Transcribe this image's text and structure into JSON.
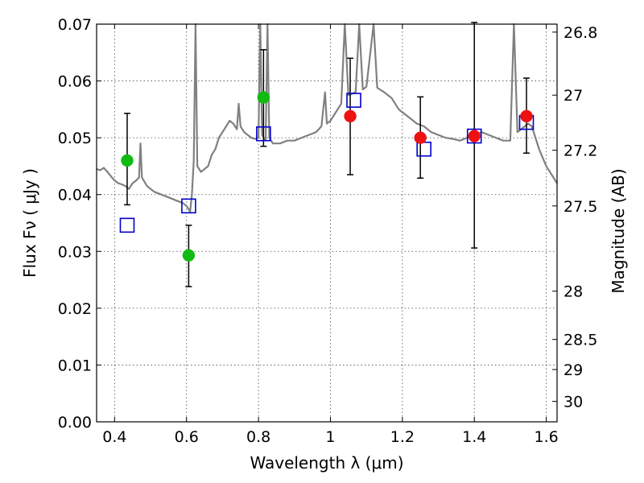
{
  "chart_data": {
    "type": "scatter",
    "title": "",
    "xlabel": "Wavelength  λ (μm)",
    "ylabel": "Flux  Fν  ( μJy )",
    "ylabel_right": "Magnitude (AB)",
    "xlim": [
      0.35,
      1.63
    ],
    "ylim": [
      0.0,
      0.07
    ],
    "grid": true,
    "x_ticks": [
      0.4,
      0.6,
      0.8,
      1.0,
      1.2,
      1.4,
      1.6
    ],
    "x_tick_labels": [
      "0.4",
      "0.6",
      "0.8",
      "1",
      "1.2",
      "1.4",
      "1.6"
    ],
    "y_ticks": [
      0.0,
      0.01,
      0.02,
      0.03,
      0.04,
      0.05,
      0.06,
      0.07
    ],
    "y_tick_labels": [
      "0.00",
      "0.01",
      "0.02",
      "0.03",
      "0.04",
      "0.05",
      "0.06",
      "0.07"
    ],
    "right_ticks": [
      {
        "flux": 0.0686,
        "label": "26.8"
      },
      {
        "flux": 0.0575,
        "label": "27"
      },
      {
        "flux": 0.0478,
        "label": "27.2"
      },
      {
        "flux": 0.038,
        "label": "27.5"
      },
      {
        "flux": 0.023,
        "label": "28"
      },
      {
        "flux": 0.0145,
        "label": "28.5"
      },
      {
        "flux": 0.0092,
        "label": "29"
      },
      {
        "flux": 0.0036,
        "label": "30"
      }
    ],
    "series": [
      {
        "marker": "circle",
        "color": "#11bb11",
        "points": [
          {
            "x": 0.435,
            "y": 0.046,
            "err_low": 0.0078,
            "err_high": 0.0083
          },
          {
            "x": 0.606,
            "y": 0.0293,
            "err_low": 0.0055,
            "err_high": 0.0053
          },
          {
            "x": 0.814,
            "y": 0.0571,
            "err_low": 0.0086,
            "err_high": 0.0084
          }
        ]
      },
      {
        "marker": "circle",
        "color": "#ee1111",
        "points": [
          {
            "x": 1.055,
            "y": 0.0538,
            "err_low": 0.0103,
            "err_high": 0.0102
          },
          {
            "x": 1.25,
            "y": 0.05,
            "err_low": 0.0071,
            "err_high": 0.0072
          },
          {
            "x": 1.4,
            "y": 0.0503,
            "err_low": 0.0197,
            "err_high": 0.02
          },
          {
            "x": 1.545,
            "y": 0.0538,
            "err_low": 0.0065,
            "err_high": 0.0067
          }
        ]
      },
      {
        "marker": "open-square",
        "color": "#0000cc",
        "points": [
          {
            "x": 0.435,
            "y": 0.0346
          },
          {
            "x": 0.606,
            "y": 0.038
          },
          {
            "x": 0.814,
            "y": 0.0507
          },
          {
            "x": 1.065,
            "y": 0.0566
          },
          {
            "x": 1.26,
            "y": 0.048
          },
          {
            "x": 1.4,
            "y": 0.0503
          },
          {
            "x": 1.545,
            "y": 0.0527
          }
        ]
      },
      {
        "marker": "line",
        "color": "#808080",
        "points": [
          [
            0.35,
            0.0445
          ],
          [
            0.36,
            0.0443
          ],
          [
            0.37,
            0.0447
          ],
          [
            0.38,
            0.044
          ],
          [
            0.39,
            0.0432
          ],
          [
            0.4,
            0.0425
          ],
          [
            0.41,
            0.042
          ],
          [
            0.42,
            0.0418
          ],
          [
            0.43,
            0.0415
          ],
          [
            0.44,
            0.041
          ],
          [
            0.45,
            0.042
          ],
          [
            0.46,
            0.0425
          ],
          [
            0.468,
            0.043
          ],
          [
            0.472,
            0.049
          ],
          [
            0.476,
            0.043
          ],
          [
            0.49,
            0.0415
          ],
          [
            0.51,
            0.0405
          ],
          [
            0.53,
            0.04
          ],
          [
            0.55,
            0.0395
          ],
          [
            0.57,
            0.039
          ],
          [
            0.59,
            0.0385
          ],
          [
            0.6,
            0.038
          ],
          [
            0.61,
            0.037
          ],
          [
            0.615,
            0.04
          ],
          [
            0.62,
            0.046
          ],
          [
            0.625,
            0.07
          ],
          [
            0.63,
            0.045
          ],
          [
            0.64,
            0.044
          ],
          [
            0.65,
            0.0445
          ],
          [
            0.66,
            0.045
          ],
          [
            0.67,
            0.047
          ],
          [
            0.68,
            0.048
          ],
          [
            0.69,
            0.05
          ],
          [
            0.7,
            0.051
          ],
          [
            0.71,
            0.052
          ],
          [
            0.72,
            0.053
          ],
          [
            0.73,
            0.0525
          ],
          [
            0.74,
            0.0515
          ],
          [
            0.745,
            0.056
          ],
          [
            0.75,
            0.052
          ],
          [
            0.76,
            0.051
          ],
          [
            0.77,
            0.0505
          ],
          [
            0.78,
            0.05
          ],
          [
            0.79,
            0.0498
          ],
          [
            0.8,
            0.05
          ],
          [
            0.805,
            0.07
          ],
          [
            0.81,
            0.0505
          ],
          [
            0.82,
            0.0495
          ],
          [
            0.825,
            0.07
          ],
          [
            0.83,
            0.05
          ],
          [
            0.84,
            0.049
          ],
          [
            0.86,
            0.049
          ],
          [
            0.88,
            0.0495
          ],
          [
            0.9,
            0.0495
          ],
          [
            0.92,
            0.05
          ],
          [
            0.94,
            0.0505
          ],
          [
            0.96,
            0.051
          ],
          [
            0.975,
            0.052
          ],
          [
            0.985,
            0.058
          ],
          [
            0.99,
            0.0525
          ],
          [
            1.0,
            0.053
          ],
          [
            1.02,
            0.055
          ],
          [
            1.03,
            0.056
          ],
          [
            1.04,
            0.07
          ],
          [
            1.05,
            0.0575
          ],
          [
            1.07,
            0.058
          ],
          [
            1.08,
            0.07
          ],
          [
            1.09,
            0.0585
          ],
          [
            1.1,
            0.059
          ],
          [
            1.12,
            0.07
          ],
          [
            1.13,
            0.0588
          ],
          [
            1.15,
            0.058
          ],
          [
            1.17,
            0.057
          ],
          [
            1.18,
            0.056
          ],
          [
            1.19,
            0.055
          ],
          [
            1.2,
            0.0545
          ],
          [
            1.22,
            0.0535
          ],
          [
            1.24,
            0.0525
          ],
          [
            1.26,
            0.052
          ],
          [
            1.28,
            0.051
          ],
          [
            1.3,
            0.0505
          ],
          [
            1.32,
            0.05
          ],
          [
            1.34,
            0.0498
          ],
          [
            1.36,
            0.0495
          ],
          [
            1.38,
            0.05
          ],
          [
            1.4,
            0.0505
          ],
          [
            1.42,
            0.051
          ],
          [
            1.44,
            0.0505
          ],
          [
            1.46,
            0.05
          ],
          [
            1.48,
            0.0495
          ],
          [
            1.5,
            0.0495
          ],
          [
            1.51,
            0.07
          ],
          [
            1.52,
            0.051
          ],
          [
            1.53,
            0.0515
          ],
          [
            1.54,
            0.052
          ],
          [
            1.55,
            0.0525
          ],
          [
            1.56,
            0.052
          ],
          [
            1.58,
            0.048
          ],
          [
            1.6,
            0.045
          ],
          [
            1.62,
            0.043
          ],
          [
            1.63,
            0.042
          ]
        ]
      }
    ]
  }
}
